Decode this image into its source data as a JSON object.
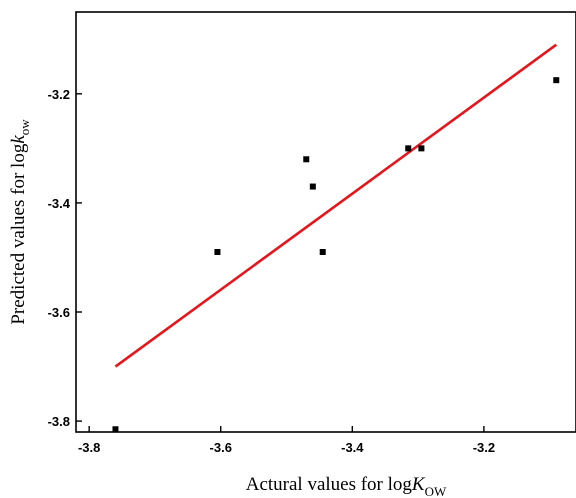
{
  "chart_data": {
    "type": "scatter",
    "xlabel": {
      "prefix": "Actural values for log",
      "var": "K",
      "sub": "OW"
    },
    "ylabel": {
      "prefix": "Predicted values for log",
      "var": "k",
      "sub": "ow"
    },
    "xlim": [
      -3.82,
      -3.06
    ],
    "ylim": [
      -3.82,
      -3.05
    ],
    "x_ticks": [
      -3.8,
      -3.6,
      -3.4,
      -3.2
    ],
    "x_tick_labels": [
      "-3.8",
      "-3.6",
      "-3.4",
      "-3.2"
    ],
    "y_ticks": [
      -3.8,
      -3.6,
      -3.4,
      -3.2
    ],
    "y_tick_labels": [
      "-3.8",
      "-3.6",
      "-3.4",
      "-3.2"
    ],
    "grid": false,
    "colors": {
      "points": "#000000",
      "fit_line": "#e8141b",
      "axes": "#000000"
    },
    "points": [
      {
        "x": -3.76,
        "y": -3.815
      },
      {
        "x": -3.605,
        "y": -3.49
      },
      {
        "x": -3.47,
        "y": -3.32
      },
      {
        "x": -3.46,
        "y": -3.37
      },
      {
        "x": -3.445,
        "y": -3.49
      },
      {
        "x": -3.315,
        "y": -3.3
      },
      {
        "x": -3.295,
        "y": -3.3
      },
      {
        "x": -3.09,
        "y": -3.175
      }
    ],
    "fit_line": {
      "x": [
        -3.76,
        -3.09
      ],
      "y": [
        -3.7,
        -3.11
      ]
    }
  }
}
